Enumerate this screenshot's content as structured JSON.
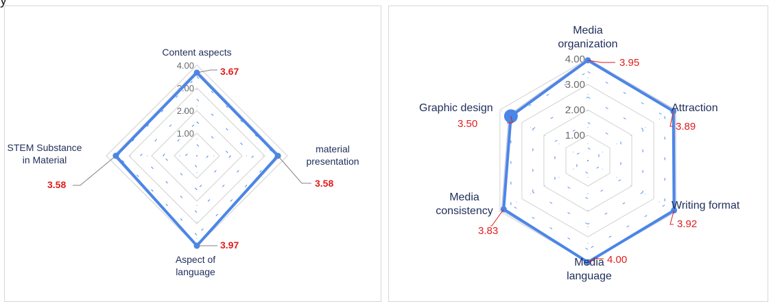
{
  "top_text": "y",
  "chart_data": [
    {
      "type": "radar",
      "categories": [
        "Content aspects",
        "material presentation",
        "Aspect of language",
        "STEM Substance in Material"
      ],
      "category_lines": [
        [
          "Content aspects"
        ],
        [
          "material",
          "presentation"
        ],
        [
          "Aspect of",
          "language"
        ],
        [
          "STEM Substance",
          "in Material"
        ]
      ],
      "ticks": [
        "1.00",
        "2.00",
        "3.00",
        "4.00"
      ],
      "rlim": [
        0,
        4
      ],
      "series": [
        {
          "values": [
            3.67,
            3.58,
            3.97,
            3.58
          ]
        }
      ],
      "value_labels": [
        "3.67",
        "3.58",
        "3.97",
        "3.58"
      ],
      "colors": {
        "series": "#4a86e8",
        "labels": "#e01b1b",
        "categories": "#1f2d5a",
        "grid": "#d0d0d0"
      }
    },
    {
      "type": "radar",
      "categories": [
        "Media organization",
        "Attraction",
        "Writing format",
        "Media language",
        "Media consistency",
        "Graphic design"
      ],
      "category_lines": [
        [
          "Media",
          "organization"
        ],
        [
          "Attraction"
        ],
        [
          "Writing format"
        ],
        [
          "Media",
          "language"
        ],
        [
          "Media",
          "consistency"
        ],
        [
          "Graphic design"
        ]
      ],
      "ticks": [
        "1.00",
        "2.00",
        "3.00",
        "4.00"
      ],
      "rlim": [
        0,
        4
      ],
      "series": [
        {
          "values": [
            3.95,
            3.89,
            3.92,
            4.0,
            3.83,
            3.5
          ]
        }
      ],
      "value_labels": [
        "3.95",
        "3.89",
        "3.92",
        "4.00",
        "3.83",
        "3.50"
      ],
      "colors": {
        "series": "#4a86e8",
        "labels": "#e01b1b",
        "categories": "#1f2d5a",
        "grid": "#d0d0d0"
      }
    }
  ]
}
